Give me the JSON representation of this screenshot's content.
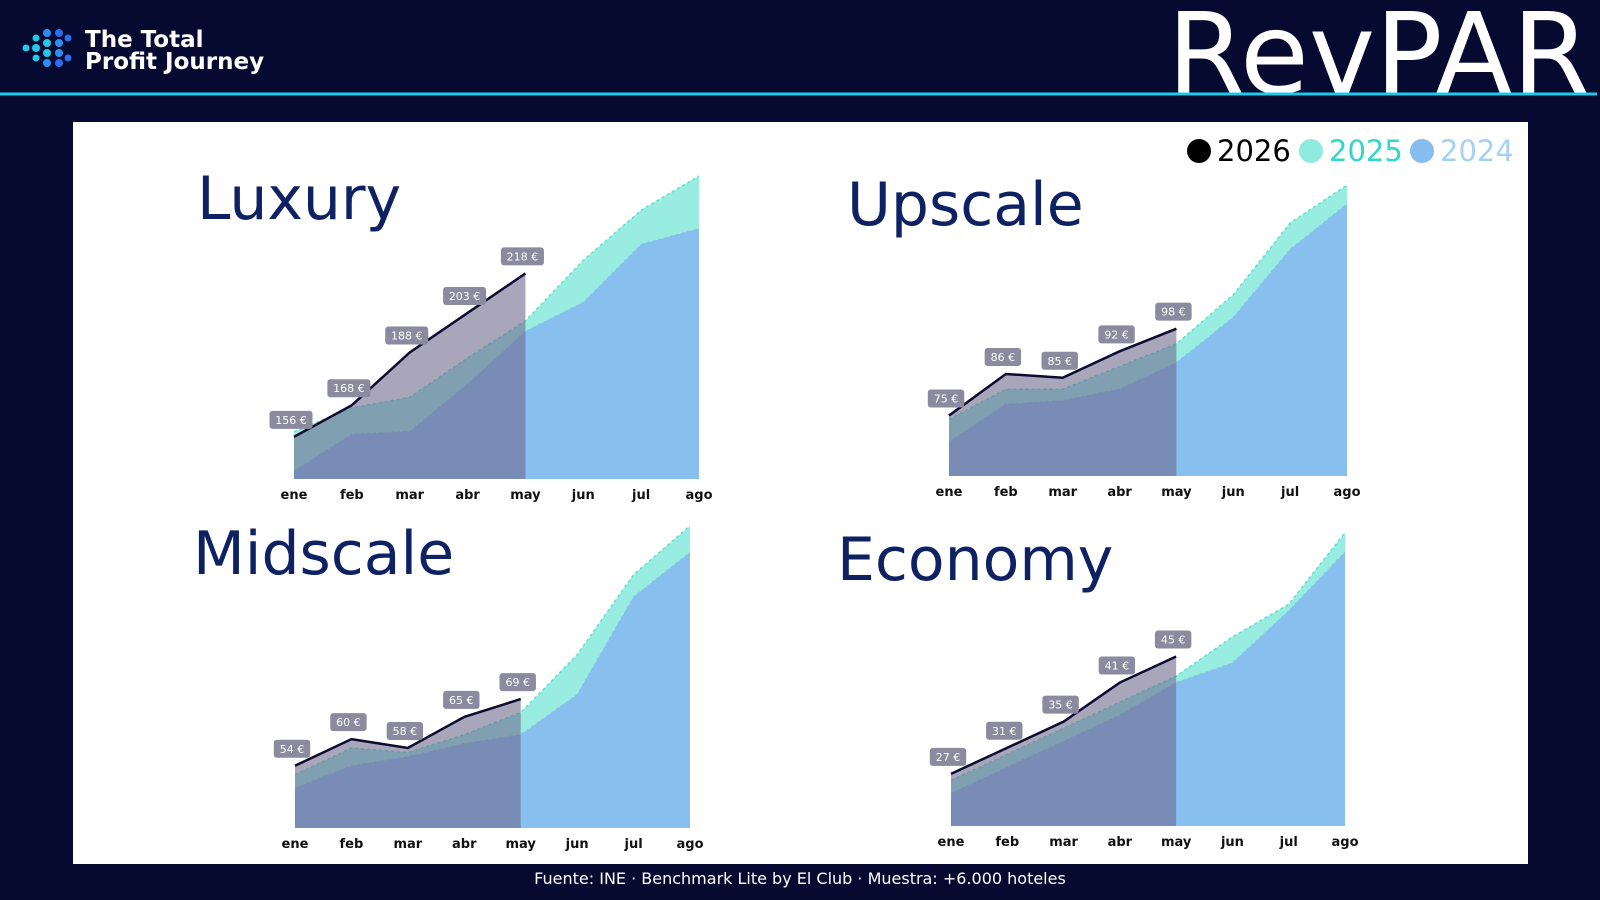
{
  "header": {
    "logo_text": [
      "The Total",
      "Profit Journey"
    ],
    "title": "RevPAR"
  },
  "legend": [
    {
      "name": "2026",
      "color": "#000000",
      "fill": "#6f6b90"
    },
    {
      "name": "2025",
      "color": "#2fd8c8",
      "fill": "#8eebdd"
    },
    {
      "name": "2024",
      "color": "#86bdee",
      "fill": "#86bdee"
    }
  ],
  "chart_data": [
    {
      "type": "area",
      "title": "Luxury",
      "categories": [
        "ene",
        "feb",
        "mar",
        "abr",
        "may",
        "jun",
        "jul",
        "ago"
      ],
      "ylim": [
        140,
        258
      ],
      "series": [
        {
          "values": [
            156,
            168,
            188,
            203,
            218,
            null,
            null,
            null
          ],
          "value_labels": [
            "156 €",
            "168 €",
            "188 €",
            "203 €",
            "218 €",
            null,
            null,
            null
          ]
        },
        {
          "values": [
            158,
            167,
            171,
            186,
            200,
            223,
            242,
            255
          ]
        },
        {
          "values": [
            143,
            157,
            158,
            176,
            196,
            207,
            229,
            235
          ]
        }
      ]
    },
    {
      "type": "area",
      "title": "Upscale",
      "categories": [
        "ene",
        "feb",
        "mar",
        "abr",
        "may",
        "jun",
        "jul",
        "ago"
      ],
      "ylim": [
        59,
        140
      ],
      "series": [
        {
          "values": [
            75,
            86,
            85,
            92,
            98,
            null,
            null,
            null
          ],
          "value_labels": [
            "75 €",
            "86 €",
            "85 €",
            "92 €",
            "98 €",
            null,
            null,
            null
          ]
        },
        {
          "values": [
            74,
            82,
            82,
            88,
            94,
            107,
            126,
            136
          ]
        },
        {
          "values": [
            68,
            78,
            79,
            82,
            89,
            101,
            119,
            131
          ]
        }
      ]
    },
    {
      "type": "area",
      "title": "Midscale",
      "categories": [
        "ene",
        "feb",
        "mar",
        "abr",
        "may",
        "jun",
        "jul",
        "ago"
      ],
      "ylim": [
        40,
        112
      ],
      "series": [
        {
          "values": [
            54,
            60,
            58,
            65,
            69,
            null,
            null,
            null
          ],
          "value_labels": [
            "54 €",
            "60 €",
            "58 €",
            "65 €",
            "69 €",
            null,
            null,
            null
          ]
        },
        {
          "values": [
            52,
            58,
            57,
            61,
            66,
            79,
            97,
            108
          ]
        },
        {
          "values": [
            49,
            54,
            56,
            59,
            61,
            70,
            92,
            102
          ]
        }
      ]
    },
    {
      "type": "area",
      "title": "Economy",
      "categories": [
        "ene",
        "feb",
        "mar",
        "abr",
        "may",
        "jun",
        "jul",
        "ago"
      ],
      "ylim": [
        19,
        67
      ],
      "series": [
        {
          "values": [
            27,
            31,
            35,
            41,
            45,
            null,
            null,
            null
          ],
          "value_labels": [
            "27 €",
            "31 €",
            "35 €",
            "41 €",
            "45 €",
            null,
            null,
            null
          ]
        },
        {
          "values": [
            26,
            30,
            34,
            38,
            42,
            48,
            53,
            64
          ]
        },
        {
          "values": [
            24,
            28,
            32,
            36,
            41,
            44,
            52,
            61
          ]
        }
      ]
    }
  ],
  "footer": "Fuente: INE · Benchmark Lite by El Club · Muestra: +6.000 hoteles"
}
